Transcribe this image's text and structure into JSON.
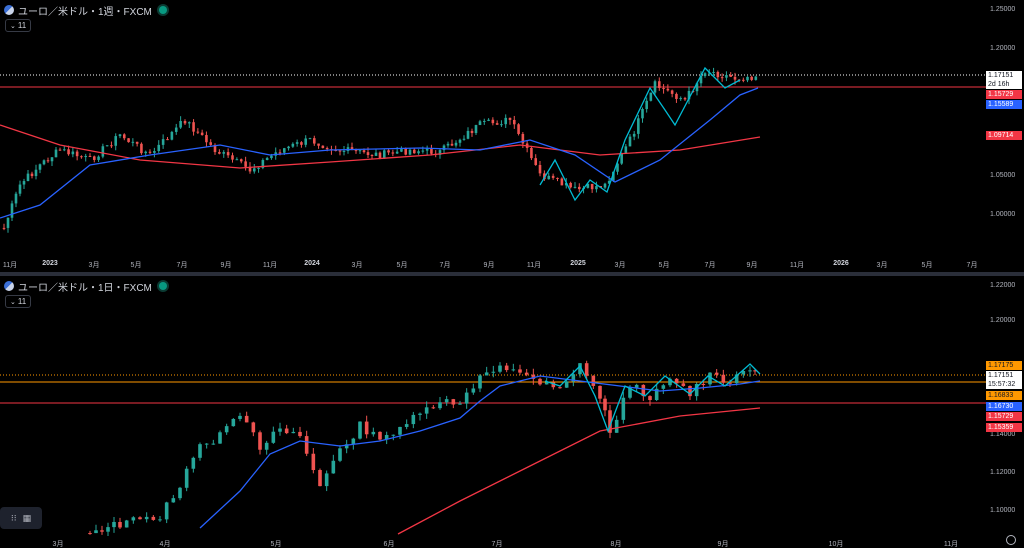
{
  "pane1": {
    "title": "ユーロ／米ドル・1週・FXCM",
    "indicator_count": "11",
    "price_axis": [
      "1.25000",
      "1.20000",
      "1.05000",
      "1.00000"
    ],
    "date_axis": [
      {
        "label": "11月",
        "year": false
      },
      {
        "label": "2023",
        "year": true
      },
      {
        "label": "3月",
        "year": false
      },
      {
        "label": "5月",
        "year": false
      },
      {
        "label": "7月",
        "year": false
      },
      {
        "label": "9月",
        "year": false
      },
      {
        "label": "11月",
        "year": false
      },
      {
        "label": "2024",
        "year": true
      },
      {
        "label": "3月",
        "year": false
      },
      {
        "label": "5月",
        "year": false
      },
      {
        "label": "7月",
        "year": false
      },
      {
        "label": "9月",
        "year": false
      },
      {
        "label": "11月",
        "year": false
      },
      {
        "label": "2025",
        "year": true
      },
      {
        "label": "3月",
        "year": false
      },
      {
        "label": "5月",
        "year": false
      },
      {
        "label": "7月",
        "year": false
      },
      {
        "label": "9月",
        "year": false
      },
      {
        "label": "11月",
        "year": false
      },
      {
        "label": "2026",
        "year": true
      },
      {
        "label": "3月",
        "year": false
      },
      {
        "label": "5月",
        "year": false
      },
      {
        "label": "7月",
        "year": false
      }
    ],
    "tags": {
      "last": "1.17151",
      "countdown": "2d 16h",
      "red_level": "1.15729",
      "blue_ma": "1.15589",
      "red_ma": "1.09714"
    }
  },
  "pane2": {
    "title": "ユーロ／米ドル・1日・FXCM",
    "indicator_count": "11",
    "price_axis": [
      "1.22000",
      "1.20000",
      "1.14000",
      "1.12000",
      "1.10000"
    ],
    "date_axis": [
      {
        "label": "3月",
        "year": false
      },
      {
        "label": "4月",
        "year": false
      },
      {
        "label": "5月",
        "year": false
      },
      {
        "label": "6月",
        "year": false
      },
      {
        "label": "7月",
        "year": false
      },
      {
        "label": "8月",
        "year": false
      },
      {
        "label": "9月",
        "year": false
      },
      {
        "label": "10月",
        "year": false
      },
      {
        "label": "11月",
        "year": false
      }
    ],
    "tags": {
      "orange_top": "1.17175",
      "last": "1.17151",
      "countdown": "15:57:32",
      "orange_low": "1.16833",
      "blue_ma": "1.16730",
      "red_level": "1.15729",
      "red_ma": "1.15359"
    }
  },
  "colors": {
    "up": "#26a69a",
    "down": "#ef5350",
    "ma_short": "#2962ff",
    "ma_long": "#f23645",
    "zigzag": "#00bcd4",
    "orange": "#ff9800"
  },
  "icons": {
    "toolbox_grid": "grid-icon",
    "settings": "gear-icon"
  }
}
